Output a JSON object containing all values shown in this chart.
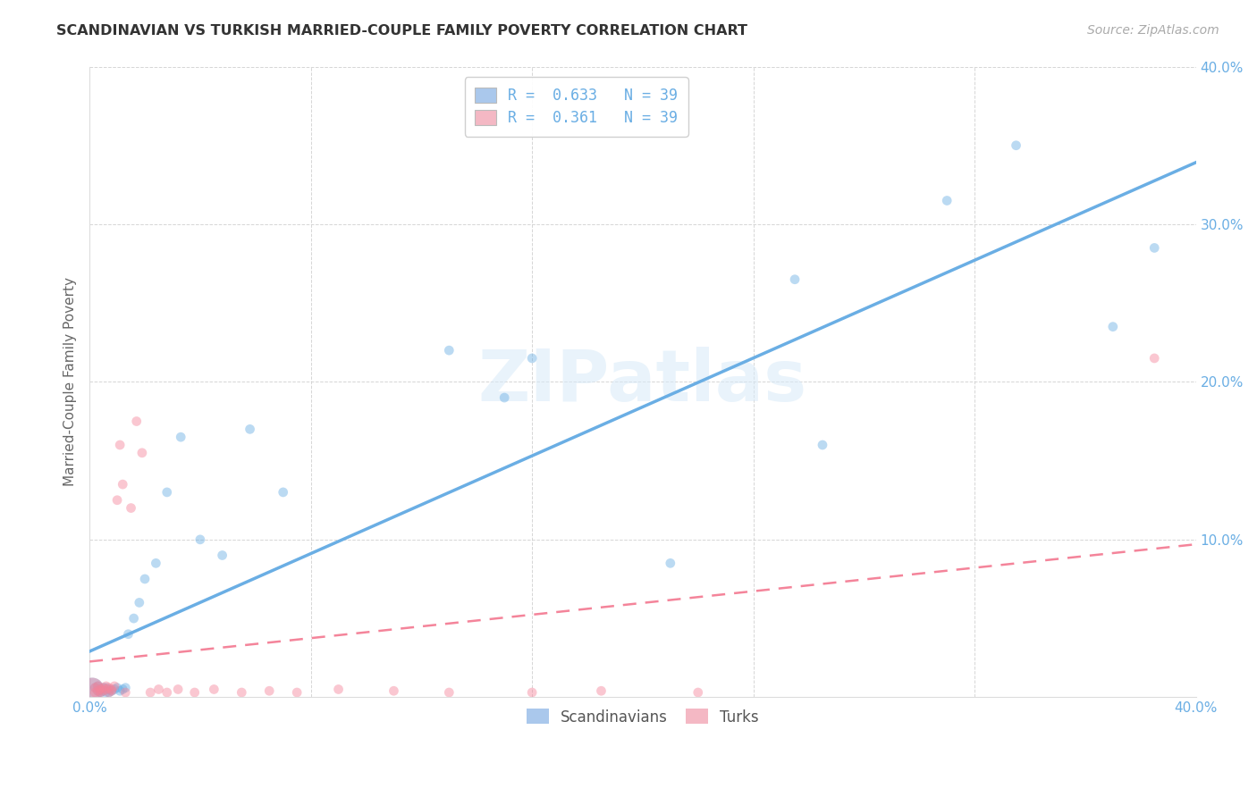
{
  "title": "SCANDINAVIAN VS TURKISH MARRIED-COUPLE FAMILY POVERTY CORRELATION CHART",
  "source": "Source: ZipAtlas.com",
  "ylabel": "Married-Couple Family Poverty",
  "xlim": [
    0.0,
    0.4
  ],
  "ylim": [
    0.0,
    0.4
  ],
  "xticks": [
    0.0,
    0.08,
    0.16,
    0.24,
    0.32,
    0.4
  ],
  "xticklabels": [
    "0.0%",
    "",
    "",
    "",
    "",
    "40.0%"
  ],
  "yticks": [
    0.0,
    0.1,
    0.2,
    0.3,
    0.4
  ],
  "yticklabels": [
    "",
    "10.0%",
    "20.0%",
    "30.0%",
    "40.0%"
  ],
  "watermark": "ZIPatlas",
  "legend_label_blue": "R =  0.633   N = 39",
  "legend_label_pink": "R =  0.361   N = 39",
  "legend_labels_bottom": [
    "Scandinavians",
    "Turks"
  ],
  "blue_color": "#6aaee4",
  "pink_color": "#f4849a",
  "blue_fill": "#aac8ec",
  "pink_fill": "#f4b8c4",
  "background_color": "#ffffff",
  "grid_color": "#cccccc",
  "title_color": "#333333",
  "axis_tick_color": "#6aaee4",
  "scandinavian_x": [
    0.001,
    0.002,
    0.003,
    0.003,
    0.004,
    0.004,
    0.005,
    0.005,
    0.006,
    0.006,
    0.007,
    0.007,
    0.008,
    0.009,
    0.01,
    0.011,
    0.012,
    0.013,
    0.014,
    0.016,
    0.018,
    0.02,
    0.024,
    0.028,
    0.033,
    0.04,
    0.048,
    0.058,
    0.07,
    0.13,
    0.15,
    0.16,
    0.21,
    0.255,
    0.265,
    0.31,
    0.335,
    0.37,
    0.385
  ],
  "scandinavian_y": [
    0.005,
    0.006,
    0.004,
    0.007,
    0.005,
    0.003,
    0.006,
    0.004,
    0.003,
    0.006,
    0.005,
    0.003,
    0.004,
    0.005,
    0.006,
    0.004,
    0.005,
    0.006,
    0.04,
    0.05,
    0.06,
    0.075,
    0.085,
    0.13,
    0.165,
    0.1,
    0.09,
    0.17,
    0.13,
    0.22,
    0.19,
    0.215,
    0.085,
    0.265,
    0.16,
    0.315,
    0.35,
    0.235,
    0.285
  ],
  "scandinavian_sizes": [
    350,
    60,
    60,
    60,
    60,
    60,
    60,
    60,
    60,
    60,
    60,
    60,
    60,
    60,
    60,
    60,
    60,
    60,
    60,
    60,
    60,
    60,
    60,
    60,
    60,
    60,
    60,
    60,
    60,
    60,
    60,
    60,
    60,
    60,
    60,
    60,
    60,
    60,
    60
  ],
  "turkish_x": [
    0.001,
    0.002,
    0.002,
    0.003,
    0.003,
    0.004,
    0.004,
    0.005,
    0.005,
    0.006,
    0.006,
    0.007,
    0.007,
    0.008,
    0.008,
    0.009,
    0.01,
    0.011,
    0.012,
    0.013,
    0.015,
    0.017,
    0.019,
    0.022,
    0.025,
    0.028,
    0.032,
    0.038,
    0.045,
    0.055,
    0.065,
    0.075,
    0.09,
    0.11,
    0.13,
    0.16,
    0.185,
    0.22,
    0.385
  ],
  "turkish_y": [
    0.005,
    0.003,
    0.006,
    0.004,
    0.007,
    0.005,
    0.003,
    0.006,
    0.004,
    0.007,
    0.005,
    0.003,
    0.006,
    0.004,
    0.005,
    0.007,
    0.125,
    0.16,
    0.135,
    0.003,
    0.12,
    0.175,
    0.155,
    0.003,
    0.005,
    0.003,
    0.005,
    0.003,
    0.005,
    0.003,
    0.004,
    0.003,
    0.005,
    0.004,
    0.003,
    0.003,
    0.004,
    0.003,
    0.215
  ],
  "turkish_sizes": [
    350,
    60,
    60,
    60,
    60,
    60,
    60,
    60,
    60,
    60,
    60,
    60,
    60,
    60,
    60,
    60,
    60,
    60,
    60,
    60,
    60,
    60,
    60,
    60,
    60,
    60,
    60,
    60,
    60,
    60,
    60,
    60,
    60,
    60,
    60,
    60,
    60,
    60,
    60
  ]
}
